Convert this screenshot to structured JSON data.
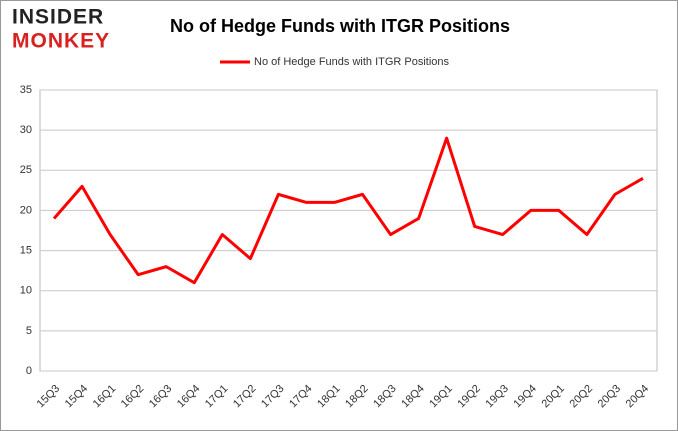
{
  "logo": [
    "INSIDER",
    "MONKEY"
  ],
  "chart_data": {
    "type": "line",
    "title": "No of Hedge Funds with ITGR Positions",
    "categories": [
      "15Q3",
      "15Q4",
      "16Q1",
      "16Q2",
      "16Q3",
      "16Q4",
      "17Q1",
      "17Q2",
      "17Q3",
      "17Q4",
      "18Q1",
      "18Q2",
      "18Q3",
      "18Q4",
      "19Q1",
      "19Q2",
      "19Q3",
      "19Q4",
      "20Q1",
      "20Q2",
      "20Q3",
      "20Q4"
    ],
    "series": [
      {
        "name": "No of Hedge Funds with ITGR Positions",
        "color": "#ff0000",
        "values": [
          19,
          23,
          17,
          12,
          13,
          11,
          17,
          14,
          22,
          21,
          21,
          22,
          17,
          19,
          29,
          18,
          17,
          20,
          20,
          17,
          22,
          24
        ]
      }
    ],
    "ylim": [
      0,
      35
    ],
    "yticks": [
      0,
      5,
      10,
      15,
      20,
      25,
      30,
      35
    ],
    "grid": true,
    "legend": "top"
  }
}
